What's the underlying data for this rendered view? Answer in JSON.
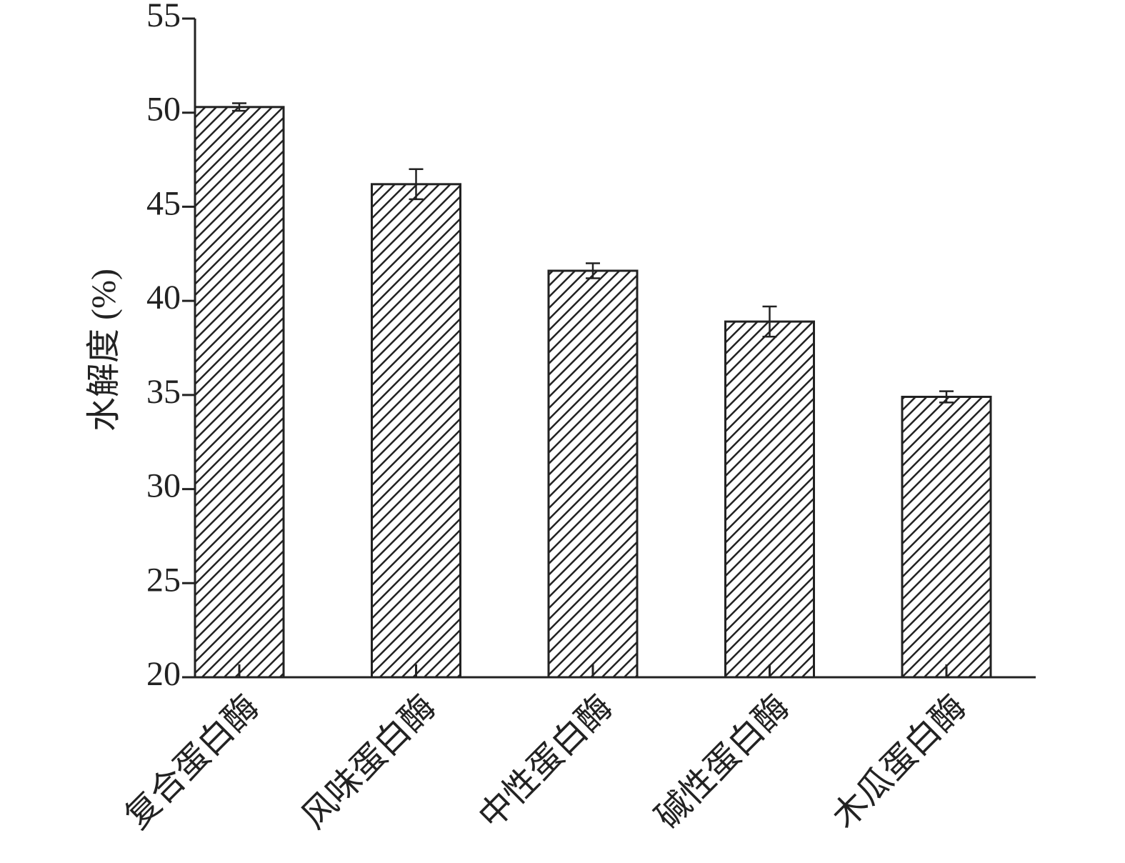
{
  "chart_data": {
    "type": "bar",
    "y_label": "水解度 (%)",
    "categories": [
      "复合蛋白酶",
      "风味蛋白酶",
      "中性蛋白酶",
      "碱性蛋白酶",
      "木瓜蛋白酶"
    ],
    "values": [
      50.3,
      46.2,
      41.6,
      38.9,
      34.9
    ],
    "errors": [
      0.2,
      0.8,
      0.4,
      0.8,
      0.3
    ],
    "color": "#222222",
    "ylim": [
      20,
      55
    ],
    "yticks": [
      20,
      25,
      30,
      35,
      40,
      45,
      50,
      55
    ]
  }
}
